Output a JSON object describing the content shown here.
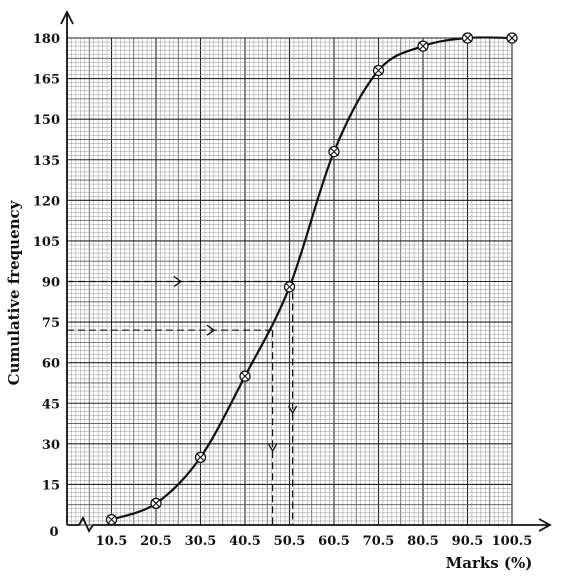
{
  "chart_data": {
    "type": "line",
    "title": "",
    "xlabel": "Marks (%)",
    "ylabel": "Cumulative frequency",
    "xlim": [
      0.5,
      100.5
    ],
    "ylim": [
      0,
      180
    ],
    "origin_label": "0",
    "x_ticks": [
      10.5,
      20.5,
      30.5,
      40.5,
      50.5,
      60.5,
      70.5,
      80.5,
      90.5,
      100.5
    ],
    "y_ticks": [
      15,
      30,
      45,
      60,
      75,
      90,
      105,
      120,
      135,
      150,
      165,
      180
    ],
    "x_axis_break": true,
    "grid": true,
    "series": [
      {
        "x": [
          10.5,
          20.5,
          30.5,
          40.5,
          50.5,
          60.5,
          70.5,
          80.5,
          90.5,
          100.5
        ],
        "y": [
          2,
          8,
          25,
          55,
          88,
          138,
          168,
          177,
          180,
          180
        ]
      }
    ],
    "annotations": [
      {
        "type": "reading",
        "y": 90,
        "x": 51.2
      },
      {
        "type": "reading",
        "y": 72,
        "x": 46.7
      }
    ]
  }
}
